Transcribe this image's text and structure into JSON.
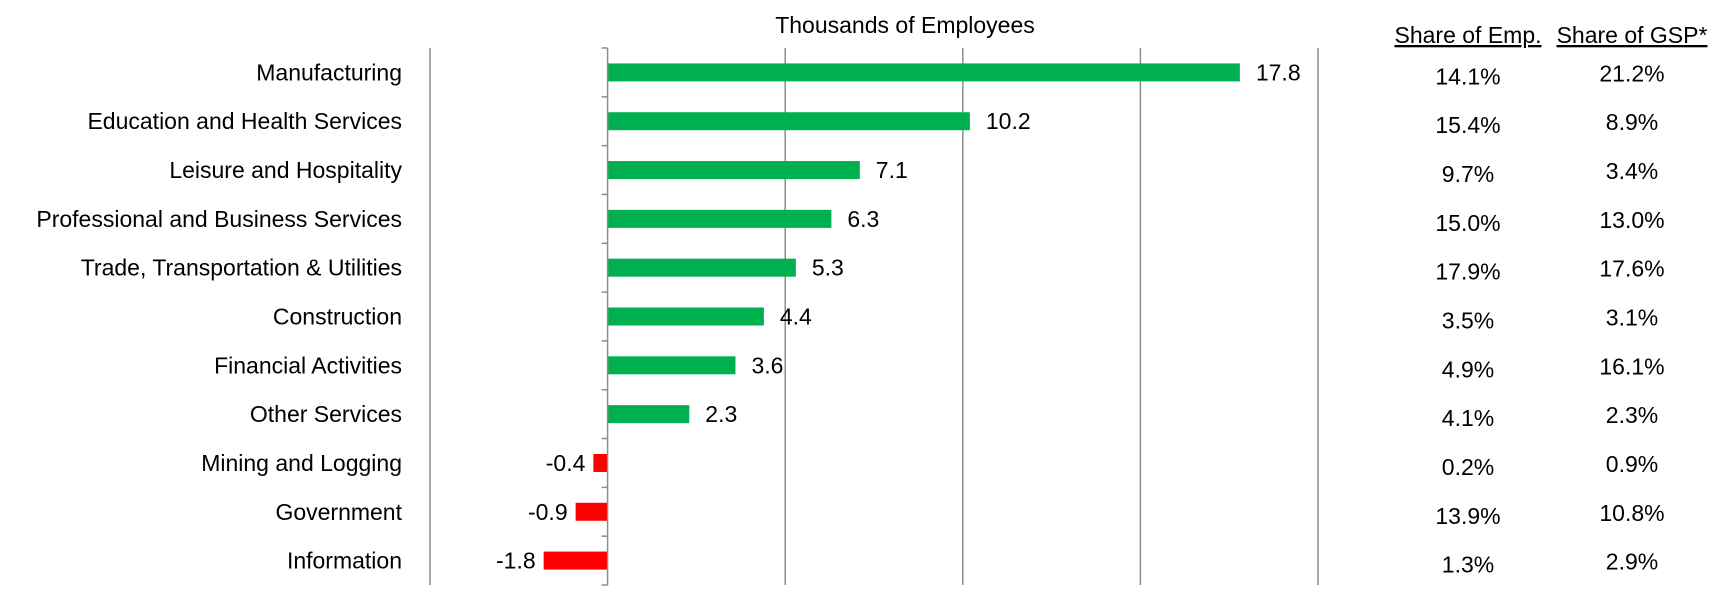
{
  "chart_data": {
    "type": "bar",
    "orientation": "horizontal",
    "title": "Thousands of Employees",
    "xlim": [
      -5.0,
      20.0
    ],
    "x_ticks": [
      -5.0,
      0.0,
      5.0,
      10.0,
      15.0,
      20.0
    ],
    "x_tick_labels": [
      "-5.0",
      "0.0",
      "5.0",
      "10.0",
      "15.0",
      "20.0"
    ],
    "grid": "vertical",
    "categories": [
      "Manufacturing",
      "Education and Health Services",
      "Leisure and Hospitality",
      "Professional and Business Services",
      "Trade, Transportation & Utilities",
      "Construction",
      "Financial Activities",
      "Other Services",
      "Mining and Logging",
      "Government",
      "Information"
    ],
    "values": [
      17.8,
      10.2,
      7.1,
      6.3,
      5.3,
      4.4,
      3.6,
      2.3,
      -0.4,
      -0.9,
      -1.8
    ],
    "value_labels": [
      "17.8",
      "10.2",
      "7.1",
      "6.3",
      "5.3",
      "4.4",
      "3.6",
      "2.3",
      "-0.4",
      "-0.9",
      "-1.8"
    ],
    "colors": {
      "positive": "#00b050",
      "negative": "#ff0000"
    },
    "table": {
      "headers": [
        "Share of Emp.",
        "Share of GSP*"
      ],
      "share_emp": [
        "14.1%",
        "15.4%",
        "9.7%",
        "15.0%",
        "17.9%",
        "3.5%",
        "4.9%",
        "4.1%",
        "0.2%",
        "13.9%",
        "1.3%"
      ],
      "share_gsp": [
        "21.2%",
        "8.9%",
        "3.4%",
        "13.0%",
        "17.6%",
        "3.1%",
        "16.1%",
        "2.3%",
        "0.9%",
        "10.8%",
        "2.9%"
      ]
    }
  }
}
